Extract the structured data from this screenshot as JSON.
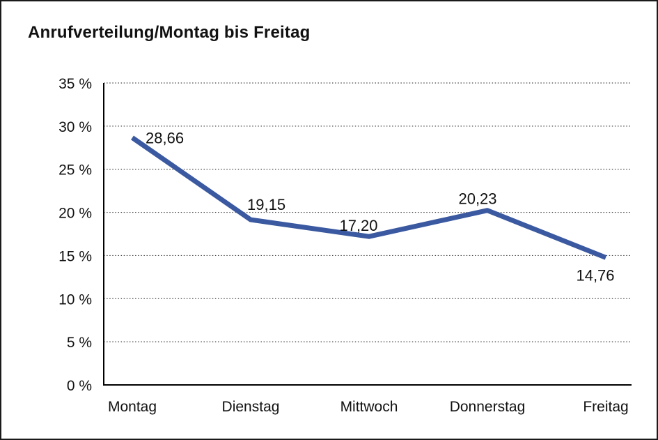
{
  "title": "Anrufverteilung/Montag bis Freitag",
  "colors": {
    "line": "#3A59A0",
    "grid": "#444444",
    "axis": "#000000",
    "text": "#111111",
    "background": "#ffffff",
    "border": "#1a1a1a"
  },
  "chart_data": {
    "type": "line",
    "title": "Anrufverteilung/Montag bis Freitag",
    "categories": [
      "Montag",
      "Dienstag",
      "Mittwoch",
      "Donnerstag",
      "Freitag"
    ],
    "series": [
      {
        "name": "Anrufverteilung",
        "values": [
          28.66,
          19.15,
          17.2,
          20.23,
          14.76
        ]
      }
    ],
    "value_labels": [
      "28,66",
      "19,15",
      "17,20",
      "20,23",
      "14,76"
    ],
    "xlabel": "",
    "ylabel": "",
    "ylim": [
      0,
      35
    ],
    "ytick_step": 5,
    "ytick_labels": [
      "0 %",
      "5 %",
      "10 %",
      "15 %",
      "20 %",
      "25 %",
      "30 %",
      "35 %"
    ],
    "grid": "horizontal-dotted",
    "legend": "none"
  }
}
